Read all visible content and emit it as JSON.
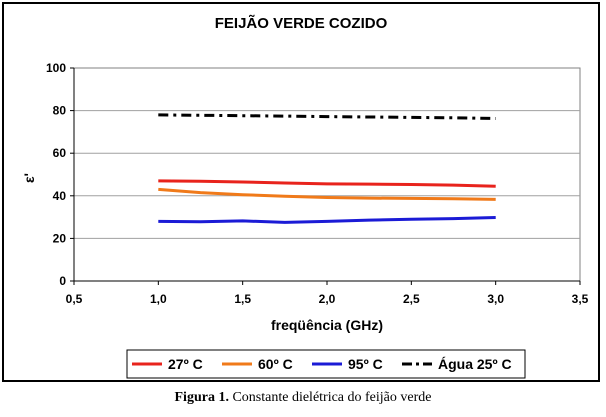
{
  "chart_data": {
    "type": "line",
    "title": "FEIJÃO VERDE COZIDO",
    "xlabel": "freqüência (GHz)",
    "ylabel": "ε'",
    "xlim": [
      0.5,
      3.5
    ],
    "ylim": [
      0,
      100
    ],
    "x_ticks": [
      "0,5",
      "1,0",
      "1,5",
      "2,0",
      "2,5",
      "3,0",
      "3,5"
    ],
    "x_tick_values": [
      0.5,
      1.0,
      1.5,
      2.0,
      2.5,
      3.0,
      3.5
    ],
    "y_ticks": [
      "0",
      "20",
      "40",
      "60",
      "80",
      "100"
    ],
    "y_tick_values": [
      0,
      20,
      40,
      60,
      80,
      100
    ],
    "grid": "horizontal",
    "legend_position": "bottom",
    "x": [
      1.0,
      1.25,
      1.5,
      1.75,
      2.0,
      2.25,
      2.5,
      2.75,
      3.0
    ],
    "series": [
      {
        "name": "27º C",
        "color": "#e8231c",
        "dash": "solid",
        "values": [
          47.0,
          46.8,
          46.5,
          46.0,
          45.6,
          45.5,
          45.3,
          45.0,
          44.5
        ]
      },
      {
        "name": "60º C",
        "color": "#f07a1a",
        "dash": "solid",
        "values": [
          43.0,
          41.5,
          40.5,
          39.8,
          39.2,
          38.9,
          38.8,
          38.6,
          38.3
        ]
      },
      {
        "name": "95º C",
        "color": "#1b1bd6",
        "dash": "solid",
        "values": [
          28.0,
          27.8,
          28.2,
          27.5,
          28.0,
          28.6,
          29.0,
          29.3,
          29.8
        ]
      },
      {
        "name": "Água 25º C",
        "color": "#000000",
        "dash": "dashdot",
        "values": [
          78.0,
          77.8,
          77.6,
          77.4,
          77.2,
          77.0,
          76.8,
          76.6,
          76.3
        ]
      }
    ]
  },
  "caption": {
    "label": "Figura 1.",
    "text": " Constante dielétrica do feijão verde"
  }
}
